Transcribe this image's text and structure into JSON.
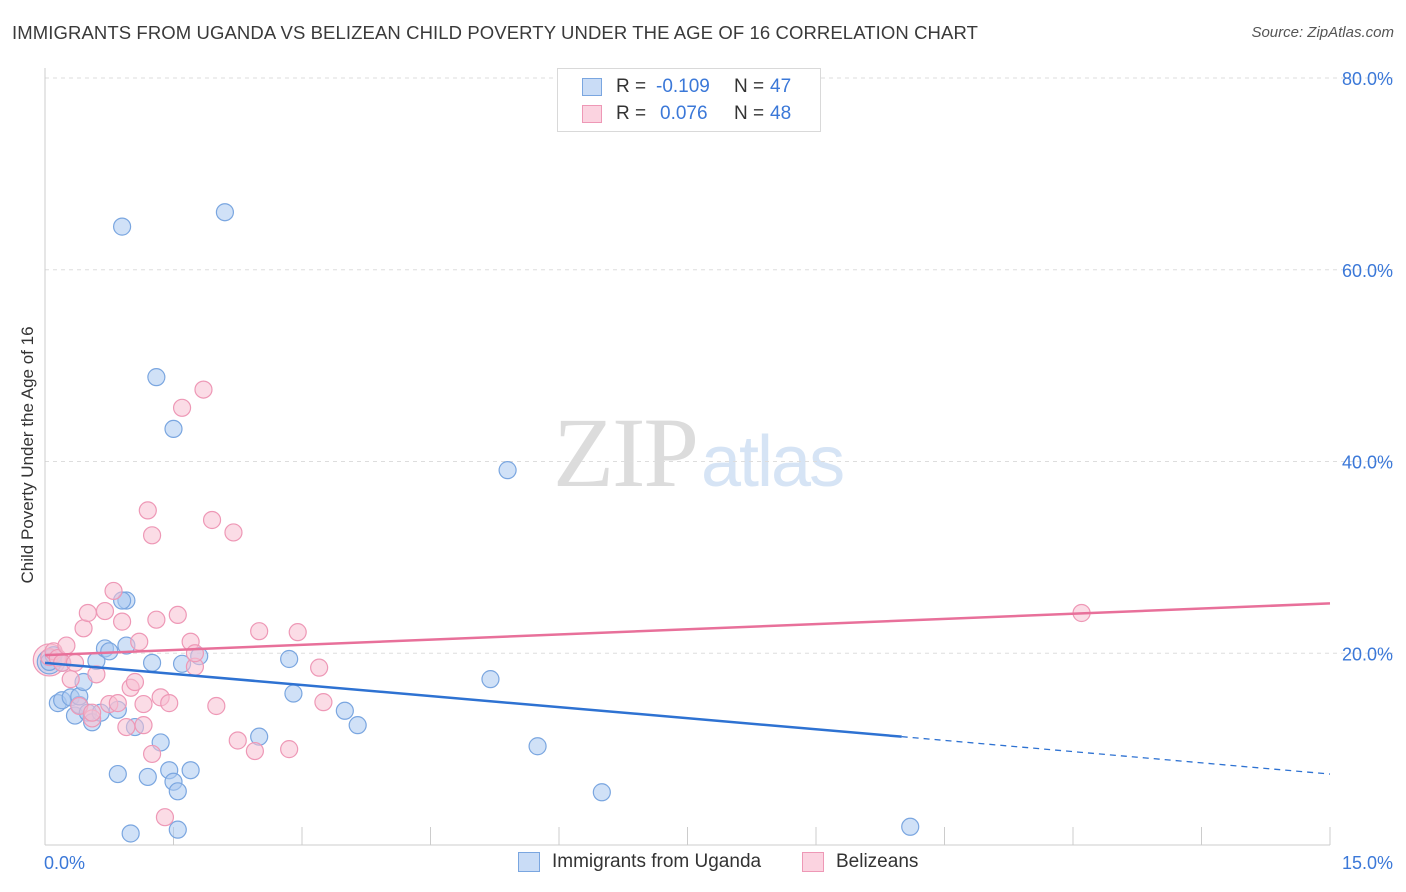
{
  "title": "IMMIGRANTS FROM UGANDA VS BELIZEAN CHILD POVERTY UNDER THE AGE OF 16 CORRELATION CHART",
  "source": "Source: ZipAtlas.com",
  "watermark": {
    "zip": "ZIP",
    "atlas": "atlas"
  },
  "legend": {
    "rows": [
      {
        "label": "R =",
        "r": "-0.109",
        "n_label": "N =",
        "n": "47"
      },
      {
        "label": "R =",
        "r": "0.076",
        "n_label": "N =",
        "n": "48"
      }
    ]
  },
  "bottom_legend": [
    "Immigrants from Uganda",
    "Belizeans"
  ],
  "colors": {
    "blue_fill": "#aac8f0",
    "blue_stroke": "#7aa6e0",
    "blue_line": "#2e72d2",
    "pink_fill": "#f7bfd2",
    "pink_stroke": "#ee98b6",
    "pink_line": "#e8709a",
    "axis_text": "#3b78d8",
    "grid": "#dddddd"
  },
  "chart_data": {
    "type": "scatter",
    "title": "IMMIGRANTS FROM UGANDA VS BELIZEAN CHILD POVERTY UNDER THE AGE OF 16 CORRELATION CHART",
    "xlabel": "",
    "ylabel": "Child Poverty Under the Age of 16",
    "xlim": [
      0,
      15
    ],
    "ylim": [
      0,
      80
    ],
    "x_tick_labels": [
      "0.0%",
      "15.0%"
    ],
    "y_ticks": [
      20,
      40,
      60,
      80
    ],
    "y_tick_labels": [
      "20.0%",
      "40.0%",
      "60.0%",
      "80.0%"
    ],
    "grid": true,
    "legend_position": "top-center",
    "series": [
      {
        "name": "Immigrants from Uganda",
        "r": -0.109,
        "n": 47,
        "points": [
          [
            0.05,
            19.1
          ],
          [
            0.1,
            19.8
          ],
          [
            0.2,
            19.0
          ],
          [
            0.15,
            14.8
          ],
          [
            0.2,
            15.1
          ],
          [
            0.3,
            15.4
          ],
          [
            0.35,
            13.5
          ],
          [
            0.4,
            14.6
          ],
          [
            0.4,
            15.5
          ],
          [
            0.45,
            17.0
          ],
          [
            0.5,
            13.8
          ],
          [
            0.55,
            12.8
          ],
          [
            0.6,
            19.2
          ],
          [
            0.65,
            13.8
          ],
          [
            0.7,
            20.5
          ],
          [
            0.75,
            20.2
          ],
          [
            0.85,
            14.1
          ],
          [
            0.95,
            20.8
          ],
          [
            0.95,
            25.5
          ],
          [
            1.05,
            12.3
          ],
          [
            0.9,
            25.5
          ],
          [
            1.25,
            19.0
          ],
          [
            1.35,
            10.7
          ],
          [
            1.45,
            7.8
          ],
          [
            1.5,
            6.6
          ],
          [
            1.55,
            5.6
          ],
          [
            1.6,
            18.9
          ],
          [
            1.7,
            7.8
          ],
          [
            1.8,
            19.7
          ],
          [
            1.0,
            1.2
          ],
          [
            1.55,
            1.6
          ],
          [
            1.2,
            7.1
          ],
          [
            0.85,
            7.4
          ],
          [
            1.5,
            43.4
          ],
          [
            1.3,
            48.8
          ],
          [
            0.9,
            64.5
          ],
          [
            2.1,
            66.0
          ],
          [
            2.5,
            11.3
          ],
          [
            2.85,
            19.4
          ],
          [
            2.9,
            15.8
          ],
          [
            3.5,
            14.0
          ],
          [
            3.65,
            12.5
          ],
          [
            5.2,
            17.3
          ],
          [
            5.4,
            39.1
          ],
          [
            5.75,
            10.3
          ],
          [
            6.5,
            5.5
          ],
          [
            10.1,
            1.9
          ]
        ]
      },
      {
        "name": "Belizeans",
        "r": 0.076,
        "n": 48,
        "points": [
          [
            0.05,
            19.6
          ],
          [
            0.1,
            20.2
          ],
          [
            0.15,
            19.5
          ],
          [
            0.2,
            19.0
          ],
          [
            0.25,
            20.8
          ],
          [
            0.3,
            17.3
          ],
          [
            0.35,
            19.0
          ],
          [
            0.4,
            14.5
          ],
          [
            0.45,
            22.6
          ],
          [
            0.5,
            24.2
          ],
          [
            0.55,
            13.2
          ],
          [
            0.6,
            17.8
          ],
          [
            0.7,
            24.4
          ],
          [
            0.75,
            14.7
          ],
          [
            0.8,
            26.5
          ],
          [
            0.85,
            14.8
          ],
          [
            0.9,
            23.3
          ],
          [
            0.95,
            12.3
          ],
          [
            1.0,
            16.4
          ],
          [
            1.05,
            17.0
          ],
          [
            1.1,
            21.2
          ],
          [
            1.15,
            14.7
          ],
          [
            1.2,
            34.9
          ],
          [
            1.25,
            32.3
          ],
          [
            1.3,
            23.5
          ],
          [
            1.35,
            15.4
          ],
          [
            1.4,
            2.9
          ],
          [
            1.45,
            14.8
          ],
          [
            1.55,
            24.0
          ],
          [
            1.6,
            45.6
          ],
          [
            1.7,
            21.2
          ],
          [
            1.75,
            18.6
          ],
          [
            1.85,
            47.5
          ],
          [
            1.95,
            33.9
          ],
          [
            2.0,
            14.5
          ],
          [
            2.2,
            32.6
          ],
          [
            2.25,
            10.9
          ],
          [
            2.45,
            9.8
          ],
          [
            2.5,
            22.3
          ],
          [
            2.85,
            10.0
          ],
          [
            2.95,
            22.2
          ],
          [
            3.2,
            18.5
          ],
          [
            3.25,
            14.9
          ],
          [
            1.25,
            9.5
          ],
          [
            1.15,
            12.5
          ],
          [
            0.55,
            13.8
          ],
          [
            1.75,
            20.0
          ],
          [
            12.1,
            24.2
          ]
        ]
      }
    ],
    "trend_lines": [
      {
        "series": "Immigrants from Uganda",
        "x0": 0,
        "y0": 19.0,
        "x1": 10.0,
        "y1": 11.3,
        "dashed_to": 15,
        "dashed_y1": 7.4
      },
      {
        "series": "Belizeans",
        "x0": 0,
        "y0": 19.8,
        "x1": 15,
        "y1": 25.2
      }
    ]
  }
}
